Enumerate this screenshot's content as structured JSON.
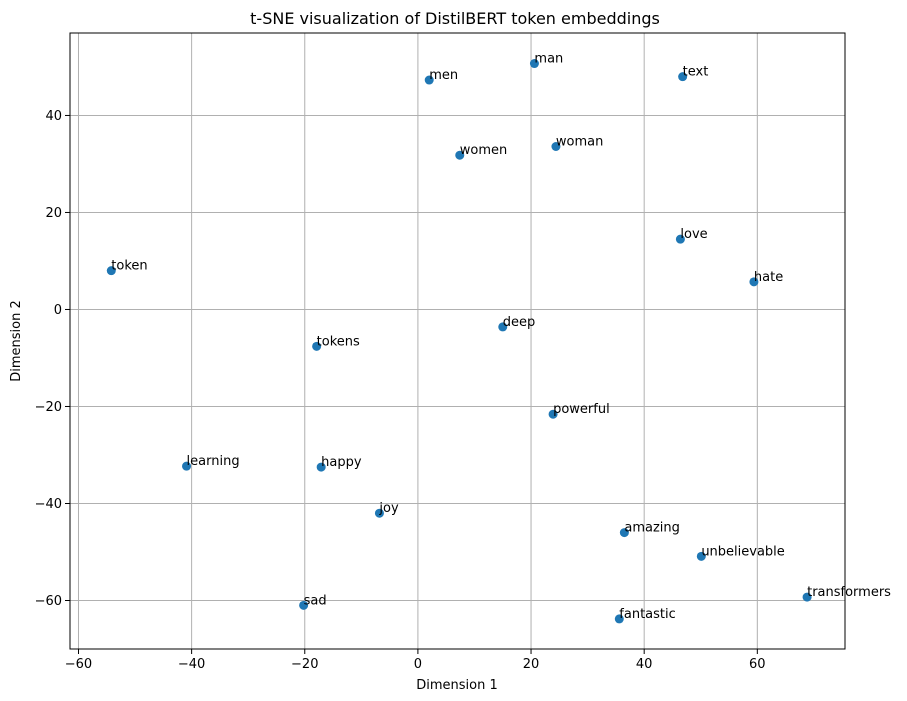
{
  "chart_data": {
    "type": "scatter",
    "title": "t-SNE visualization of DistilBERT token embeddings",
    "xlabel": "Dimension 1",
    "ylabel": "Dimension 2",
    "xlim": [
      -61.5,
      75.5
    ],
    "ylim": [
      -70,
      57
    ],
    "xticks": [
      -60,
      -40,
      -20,
      0,
      20,
      40,
      60
    ],
    "yticks": [
      -60,
      -40,
      -20,
      0,
      20,
      40
    ],
    "grid": true,
    "marker_color": "#1f77b4",
    "points": [
      {
        "label": "man",
        "x": 20.6,
        "y": 50.7
      },
      {
        "label": "men",
        "x": 2.0,
        "y": 47.3
      },
      {
        "label": "text",
        "x": 46.8,
        "y": 48.0
      },
      {
        "label": "women",
        "x": 7.4,
        "y": 31.8
      },
      {
        "label": "woman",
        "x": 24.4,
        "y": 33.6
      },
      {
        "label": "love",
        "x": 46.4,
        "y": 14.5
      },
      {
        "label": "hate",
        "x": 59.4,
        "y": 5.7
      },
      {
        "label": "token",
        "x": -54.2,
        "y": 8.0
      },
      {
        "label": "deep",
        "x": 15.0,
        "y": -3.6
      },
      {
        "label": "tokens",
        "x": -17.9,
        "y": -7.6
      },
      {
        "label": "powerful",
        "x": 23.9,
        "y": -21.6
      },
      {
        "label": "learning",
        "x": -40.9,
        "y": -32.3
      },
      {
        "label": "happy",
        "x": -17.1,
        "y": -32.5
      },
      {
        "label": "joy",
        "x": -6.8,
        "y": -42.0
      },
      {
        "label": "amazing",
        "x": 36.5,
        "y": -46.0
      },
      {
        "label": "unbelievable",
        "x": 50.1,
        "y": -50.9
      },
      {
        "label": "transformers",
        "x": 68.8,
        "y": -59.3
      },
      {
        "label": "sad",
        "x": -20.2,
        "y": -61.0
      },
      {
        "label": "fantastic",
        "x": 35.6,
        "y": -63.8
      }
    ]
  }
}
